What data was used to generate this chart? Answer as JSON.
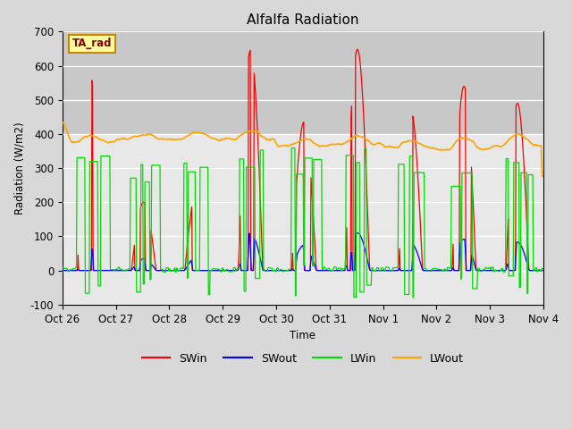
{
  "title": "Alfalfa Radiation",
  "ylabel": "Radiation (W/m2)",
  "xlabel": "Time",
  "annotation": "TA_rad",
  "ylim": [
    -100,
    700
  ],
  "yticks": [
    -100,
    0,
    100,
    200,
    300,
    400,
    500,
    600,
    700
  ],
  "xtick_labels": [
    "Oct 26",
    "Oct 27",
    "Oct 28",
    "Oct 29",
    "Oct 30",
    "Oct 31",
    "Nov 1",
    "Nov 2",
    "Nov 3",
    "Nov 4"
  ],
  "colors": {
    "SWin": "#ff0000",
    "SWout": "#0000ff",
    "LWin": "#00dd00",
    "LWout": "#ffa500"
  },
  "fig_bg": "#d8d8d8",
  "plot_bg_lower": "#ffffff",
  "plot_bg_upper": "#d0d0d0",
  "shade_threshold": 400,
  "n_days": 9
}
